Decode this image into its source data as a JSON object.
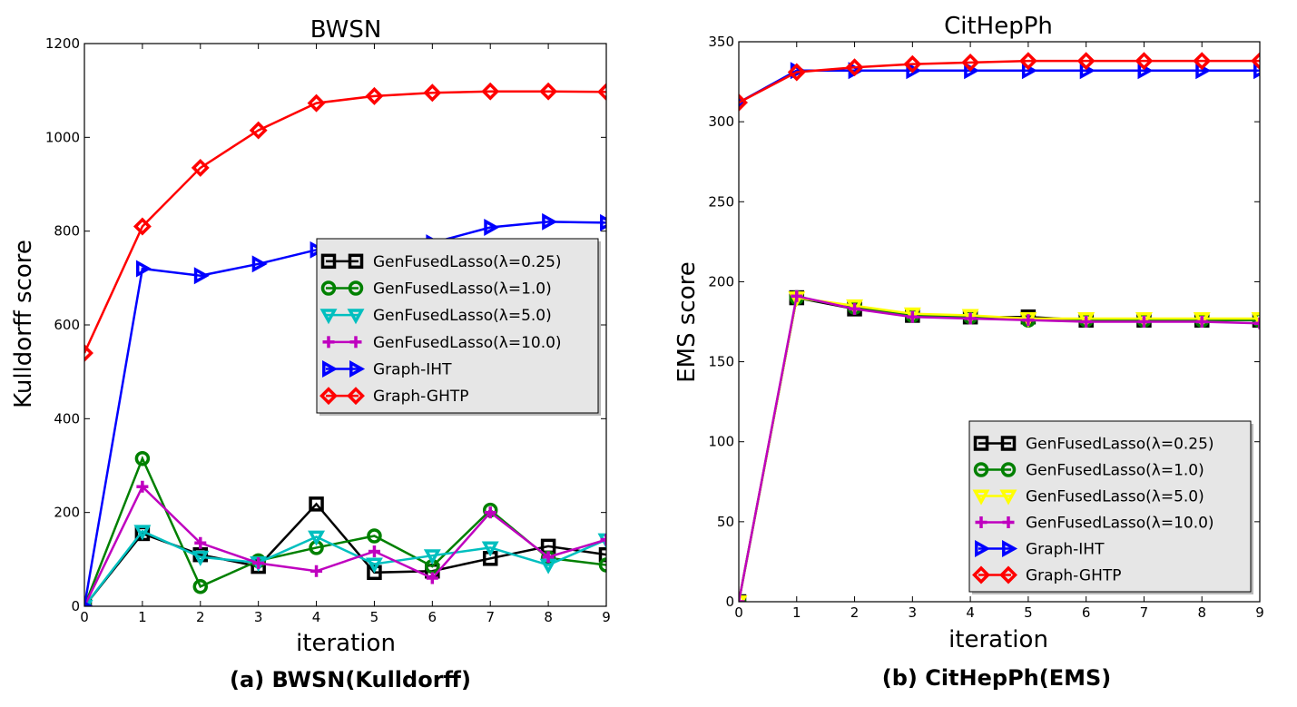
{
  "chart_data": [
    {
      "type": "line",
      "title": "BWSN",
      "caption": "(a) BWSN(Kulldorff)",
      "xlabel": "iteration",
      "ylabel": "Kulldorff score",
      "xlim": [
        0,
        9
      ],
      "ylim": [
        0,
        1200
      ],
      "xticks": [
        "0",
        "1",
        "2",
        "3",
        "4",
        "5",
        "6",
        "7",
        "8",
        "9"
      ],
      "yticks": [
        "0",
        "200",
        "400",
        "600",
        "800",
        "1000",
        "1200"
      ],
      "legend_position": "center-right",
      "x": [
        0,
        1,
        2,
        3,
        4,
        5,
        6,
        7,
        8,
        9
      ],
      "series": [
        {
          "name": "GenFusedLasso(λ=0.25)",
          "color": "#000000",
          "marker": "square",
          "values": [
            0,
            155,
            110,
            85,
            218,
            72,
            75,
            102,
            128,
            110
          ]
        },
        {
          "name": "GenFusedLasso(λ=1.0)",
          "color": "#008000",
          "marker": "circle",
          "values": [
            0,
            315,
            42,
            97,
            125,
            150,
            85,
            205,
            103,
            88
          ]
        },
        {
          "name": "GenFusedLasso(λ=5.0)",
          "color": "#00bfbf",
          "marker": "triangle-down",
          "values": [
            0,
            160,
            105,
            93,
            148,
            90,
            108,
            125,
            88,
            142
          ]
        },
        {
          "name": "GenFusedLasso(λ=10.0)",
          "color": "#bf00bf",
          "marker": "plus",
          "values": [
            0,
            255,
            135,
            92,
            75,
            117,
            60,
            200,
            105,
            142
          ]
        },
        {
          "name": "Graph-IHT",
          "color": "#0000ff",
          "marker": "triangle-right",
          "values": [
            0,
            720,
            705,
            730,
            760,
            765,
            775,
            808,
            820,
            818
          ]
        },
        {
          "name": "Graph-GHTP",
          "color": "#ff0000",
          "marker": "diamond",
          "values": [
            540,
            810,
            935,
            1015,
            1073,
            1088,
            1095,
            1098,
            1098,
            1097
          ]
        }
      ]
    },
    {
      "type": "line",
      "title": "CitHepPh",
      "caption": "(b) CitHepPh(EMS)",
      "xlabel": "iteration",
      "ylabel": "EMS score",
      "xlim": [
        0,
        9
      ],
      "ylim": [
        0,
        350
      ],
      "xticks": [
        "0",
        "1",
        "2",
        "3",
        "4",
        "5",
        "6",
        "7",
        "8",
        "9"
      ],
      "yticks": [
        "0",
        "50",
        "100",
        "150",
        "200",
        "250",
        "300",
        "350"
      ],
      "legend_position": "lower-right",
      "x": [
        0,
        1,
        2,
        3,
        4,
        5,
        6,
        7,
        8,
        9
      ],
      "series": [
        {
          "name": "GenFusedLasso(λ=0.25)",
          "color": "#000000",
          "marker": "square",
          "values": [
            0,
            190,
            183,
            179,
            178,
            178,
            176,
            176,
            176,
            176
          ]
        },
        {
          "name": "GenFusedLasso(λ=1.0)",
          "color": "#008000",
          "marker": "circle",
          "values": [
            0,
            190,
            184,
            179,
            178,
            176,
            176,
            176,
            176,
            176
          ]
        },
        {
          "name": "GenFusedLasso(λ=5.0)",
          "color": "#ffff00",
          "marker": "triangle-down",
          "values": [
            0,
            190,
            185,
            180,
            179,
            177,
            177,
            177,
            177,
            177
          ]
        },
        {
          "name": "GenFusedLasso(λ=10.0)",
          "color": "#bf00bf",
          "marker": "plus",
          "values": [
            0,
            191,
            183,
            178,
            177,
            176,
            175,
            175,
            175,
            174
          ]
        },
        {
          "name": "Graph-IHT",
          "color": "#0000ff",
          "marker": "triangle-right",
          "values": [
            312,
            332,
            332,
            332,
            332,
            332,
            332,
            332,
            332,
            332
          ]
        },
        {
          "name": "Graph-GHTP",
          "color": "#ff0000",
          "marker": "diamond",
          "values": [
            312,
            331,
            334,
            336,
            337,
            338,
            338,
            338,
            338,
            338
          ]
        }
      ]
    }
  ]
}
